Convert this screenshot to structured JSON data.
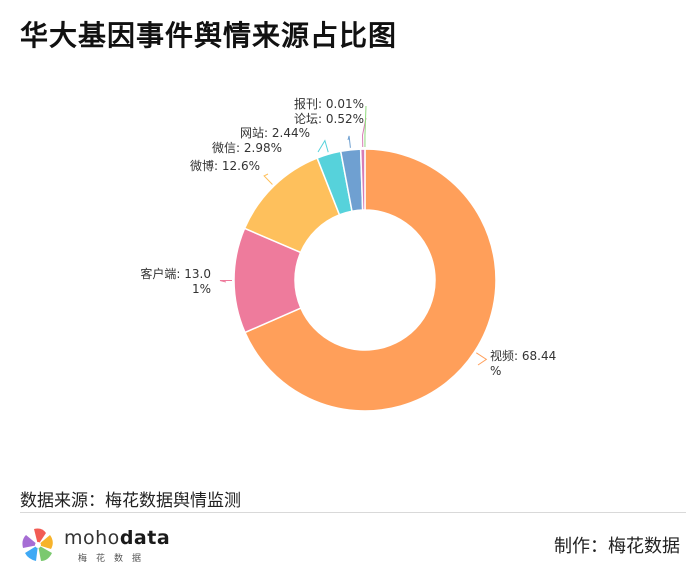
{
  "title": "华大基因事件舆情来源占比图",
  "source": "数据来源：梅花数据舆情监测",
  "maker": "制作：梅花数据",
  "logo": {
    "word_light": "moho",
    "word_bold": "data",
    "sub": "梅花数据"
  },
  "chart_data": {
    "type": "pie",
    "variant": "donut",
    "title": "华大基因事件舆情来源占比图",
    "slices": [
      {
        "name": "视频",
        "value": 68.44,
        "label": [
          "视频: 68.44",
          "%"
        ],
        "color": "#FF9F5A"
      },
      {
        "name": "客户端",
        "value": 13.01,
        "label": [
          "客户端: 13.0",
          "1%"
        ],
        "color": "#EE7B9C"
      },
      {
        "name": "微博",
        "value": 12.6,
        "label": [
          "微博: 12.6%"
        ],
        "color": "#FEC05C"
      },
      {
        "name": "微信",
        "value": 2.98,
        "label": [
          "微信: 2.98%"
        ],
        "color": "#56D2DB"
      },
      {
        "name": "网站",
        "value": 2.44,
        "label": [
          "网站: 2.44%"
        ],
        "color": "#6FA0D1"
      },
      {
        "name": "论坛",
        "value": 0.52,
        "label": [
          "论坛: 0.52%"
        ],
        "color": "#D87CB4"
      },
      {
        "name": "报刊",
        "value": 0.01,
        "label": [
          "报刊: 0.01%"
        ],
        "color": "#8FD97C"
      }
    ]
  }
}
